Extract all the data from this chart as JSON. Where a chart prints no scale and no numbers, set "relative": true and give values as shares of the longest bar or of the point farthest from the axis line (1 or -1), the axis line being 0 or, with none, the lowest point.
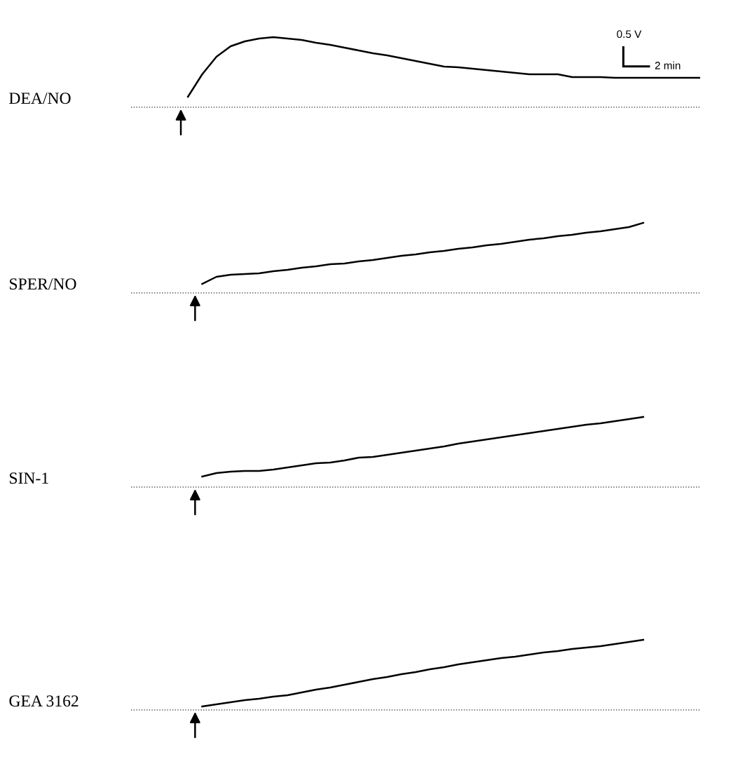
{
  "chart_data": [
    {
      "type": "line",
      "title": "DEA/NO",
      "relative": true,
      "annotations": [
        "0.5 V",
        "2 min"
      ],
      "categories": [
        null,
        null,
        null,
        null,
        null,
        null,
        null,
        null,
        null,
        null,
        null,
        null,
        null,
        null,
        null,
        null,
        null,
        null,
        null,
        null,
        null,
        null,
        null,
        null,
        null,
        null,
        null,
        null,
        null,
        null,
        null,
        null,
        null,
        null,
        null,
        null,
        null,
        null,
        null,
        null,
        null
      ],
      "series": [
        {
          "color": "#000000",
          "values": [
            null,
            null,
            null,
            null,
            0.15,
            0.47,
            0.72,
            0.87,
            0.94,
            0.98,
            1,
            0.98,
            0.96,
            0.92,
            0.89,
            0.85,
            0.81,
            0.77,
            0.74,
            0.7,
            0.66,
            0.62,
            0.58,
            0.57,
            0.55,
            0.53,
            0.51,
            0.49,
            0.47,
            0.47,
            0.47,
            0.43,
            0.43,
            0.43,
            0.42,
            0.42,
            0.42,
            0.42,
            0.42,
            0.42,
            0.42
          ]
        }
      ],
      "ref_lines": [
        {
          "axis": "y",
          "value": 0,
          "color": "#555555",
          "line_style": "dotted"
        }
      ]
    },
    {
      "type": "line",
      "title": "SPER/NO",
      "relative": true,
      "categories": [
        null,
        null,
        null,
        null,
        null,
        null,
        null,
        null,
        null,
        null,
        null,
        null,
        null,
        null,
        null,
        null,
        null,
        null,
        null,
        null,
        null,
        null,
        null,
        null,
        null,
        null,
        null,
        null,
        null,
        null,
        null,
        null,
        null,
        null,
        null,
        null,
        null,
        null,
        null,
        null,
        null
      ],
      "series": [
        {
          "color": "#000000",
          "values": [
            null,
            null,
            null,
            null,
            null,
            0.13,
            0.23,
            0.26,
            0.27,
            0.28,
            0.31,
            0.33,
            0.36,
            0.38,
            0.41,
            0.42,
            0.45,
            0.47,
            0.5,
            0.53,
            0.55,
            0.58,
            0.6,
            0.63,
            0.65,
            0.68,
            0.7,
            0.73,
            0.76,
            0.78,
            0.81,
            0.83,
            0.86,
            0.88,
            0.91,
            0.94,
            1,
            null,
            null,
            null,
            null
          ]
        }
      ],
      "ref_lines": [
        {
          "axis": "y",
          "value": 0,
          "color": "#555555",
          "line_style": "dotted"
        }
      ]
    },
    {
      "type": "line",
      "title": "SIN-1",
      "relative": true,
      "categories": [
        null,
        null,
        null,
        null,
        null,
        null,
        null,
        null,
        null,
        null,
        null,
        null,
        null,
        null,
        null,
        null,
        null,
        null,
        null,
        null,
        null,
        null,
        null,
        null,
        null,
        null,
        null,
        null,
        null,
        null,
        null,
        null,
        null,
        null,
        null,
        null,
        null,
        null,
        null,
        null,
        null
      ],
      "series": [
        {
          "color": "#000000",
          "values": [
            null,
            null,
            null,
            null,
            null,
            0.15,
            0.2,
            0.22,
            0.23,
            0.23,
            0.25,
            0.28,
            0.31,
            0.34,
            0.35,
            0.38,
            0.42,
            0.43,
            0.46,
            0.49,
            0.52,
            0.55,
            0.58,
            0.62,
            0.65,
            0.68,
            0.71,
            0.74,
            0.77,
            0.8,
            0.83,
            0.86,
            0.89,
            0.91,
            0.94,
            0.97,
            1,
            null,
            null,
            null,
            null
          ]
        }
      ],
      "ref_lines": [
        {
          "axis": "y",
          "value": 0,
          "color": "#555555",
          "line_style": "dotted"
        }
      ]
    },
    {
      "type": "line",
      "title": "GEA 3162",
      "relative": true,
      "categories": [
        null,
        null,
        null,
        null,
        null,
        null,
        null,
        null,
        null,
        null,
        null,
        null,
        null,
        null,
        null,
        null,
        null,
        null,
        null,
        null,
        null,
        null,
        null,
        null,
        null,
        null,
        null,
        null,
        null,
        null,
        null,
        null,
        null,
        null,
        null,
        null,
        null,
        null,
        null,
        null,
        null
      ],
      "series": [
        {
          "color": "#000000",
          "values": [
            null,
            null,
            null,
            null,
            null,
            0.05,
            0.08,
            0.11,
            0.14,
            0.16,
            0.19,
            0.21,
            0.25,
            0.29,
            0.32,
            0.36,
            0.4,
            0.44,
            0.47,
            0.51,
            0.54,
            0.58,
            0.61,
            0.65,
            0.68,
            0.71,
            0.74,
            0.76,
            0.79,
            0.82,
            0.84,
            0.87,
            0.89,
            0.91,
            0.94,
            0.97,
            1,
            null,
            null,
            null,
            null
          ]
        }
      ],
      "ref_lines": [
        {
          "axis": "y",
          "value": 0,
          "color": "#555555",
          "line_style": "dotted"
        }
      ]
    }
  ]
}
